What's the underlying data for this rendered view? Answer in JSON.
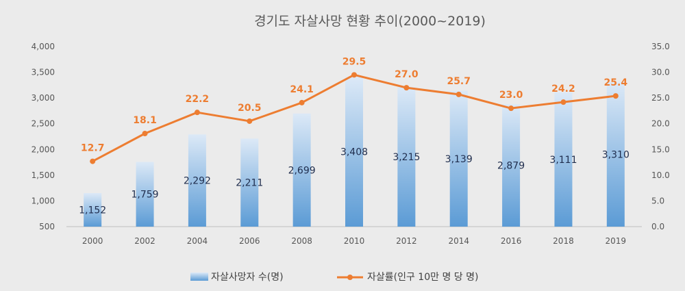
{
  "chart_data": {
    "type": "bar+line",
    "title": "경기도 자살사망 현황 추이(2000~2019)",
    "categories": [
      "2000",
      "2002",
      "2004",
      "2006",
      "2008",
      "2010",
      "2012",
      "2014",
      "2016",
      "2018",
      "2019"
    ],
    "series": [
      {
        "name": "자살사망자 수(명)",
        "type": "bar",
        "axis": "left",
        "values": [
          1152,
          1759,
          2292,
          2211,
          2699,
          3408,
          3215,
          3139,
          2879,
          3111,
          3310
        ],
        "labels": [
          "1,152",
          "1,759",
          "2,292",
          "2,211",
          "2,699",
          "3,408",
          "3,215",
          "3,139",
          "2,879",
          "3,111",
          "3,310"
        ],
        "color": "#5b9bd5"
      },
      {
        "name": "자살률(인구 10만 명 당 명)",
        "type": "line",
        "axis": "right",
        "values": [
          12.7,
          18.1,
          22.2,
          20.5,
          24.1,
          29.5,
          27.0,
          25.7,
          23.0,
          24.2,
          25.4
        ],
        "labels": [
          "12.7",
          "18.1",
          "22.2",
          "20.5",
          "24.1",
          "29.5",
          "27.0",
          "25.7",
          "23.0",
          "24.2",
          "25.4"
        ],
        "color": "#ed7d31"
      }
    ],
    "y_left": {
      "ylim": [
        500,
        4000
      ],
      "ticks": [
        500,
        1000,
        1500,
        2000,
        2500,
        3000,
        3500,
        4000
      ],
      "tick_labels": [
        "500",
        "1,000",
        "1,500",
        "2,000",
        "2,500",
        "3,000",
        "3,500",
        "4,000"
      ]
    },
    "y_right": {
      "ylim": [
        0,
        35
      ],
      "ticks": [
        0,
        5,
        10,
        15,
        20,
        25,
        30,
        35
      ],
      "tick_labels": [
        "0.0",
        "5.0",
        "10.0",
        "15.0",
        "20.0",
        "25.0",
        "30.0",
        "35.0"
      ]
    },
    "legend_position": "bottom",
    "grid": false
  }
}
